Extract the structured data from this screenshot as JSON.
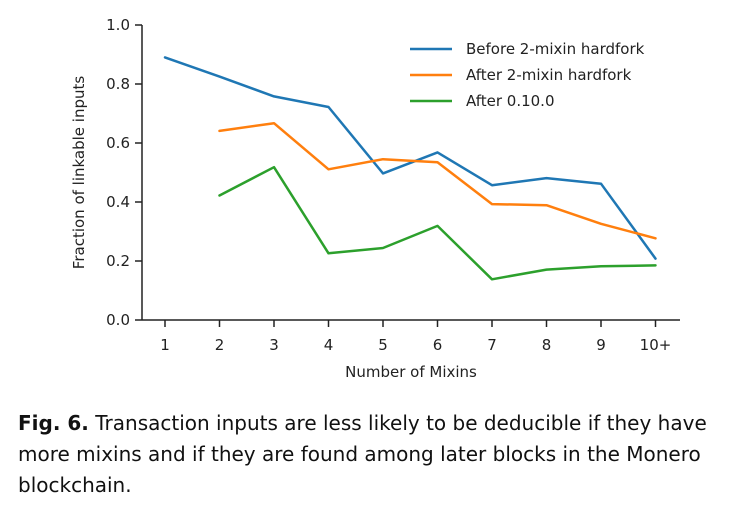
{
  "chart_data": {
    "type": "line",
    "title": "",
    "xlabel": "Number of Mixins",
    "ylabel": "Fraction of linkable inputs",
    "categories": [
      "1",
      "2",
      "3",
      "4",
      "5",
      "6",
      "7",
      "8",
      "9",
      "10+"
    ],
    "ylim": [
      0.0,
      1.0
    ],
    "yticks": [
      0.0,
      0.2,
      0.4,
      0.6,
      0.8,
      1.0
    ],
    "ytick_labels": [
      "0.0",
      "0.2",
      "0.4",
      "0.6",
      "0.8",
      "1.0"
    ],
    "grid": false,
    "legend_position": "top-right",
    "series": [
      {
        "name": "Before 2-mixin hardfork",
        "color": "#1f77b4",
        "values": [
          0.89,
          0.825,
          0.758,
          0.722,
          0.497,
          0.568,
          0.457,
          0.481,
          0.462,
          0.208
        ]
      },
      {
        "name": "After 2-mixin hardfork",
        "color": "#ff7f0e",
        "values": [
          null,
          0.641,
          0.667,
          0.511,
          0.545,
          0.535,
          0.393,
          0.389,
          0.326,
          0.277
        ]
      },
      {
        "name": "After 0.10.0",
        "color": "#2ca02c",
        "values": [
          null,
          0.422,
          0.518,
          0.226,
          0.244,
          0.319,
          0.138,
          0.171,
          0.182,
          0.185
        ]
      }
    ]
  },
  "caption": {
    "label": "Fig. 6.",
    "text": "Transaction inputs are less likely to be deducible if they have more mixins and if they are found among later blocks in the Monero blockchain."
  }
}
